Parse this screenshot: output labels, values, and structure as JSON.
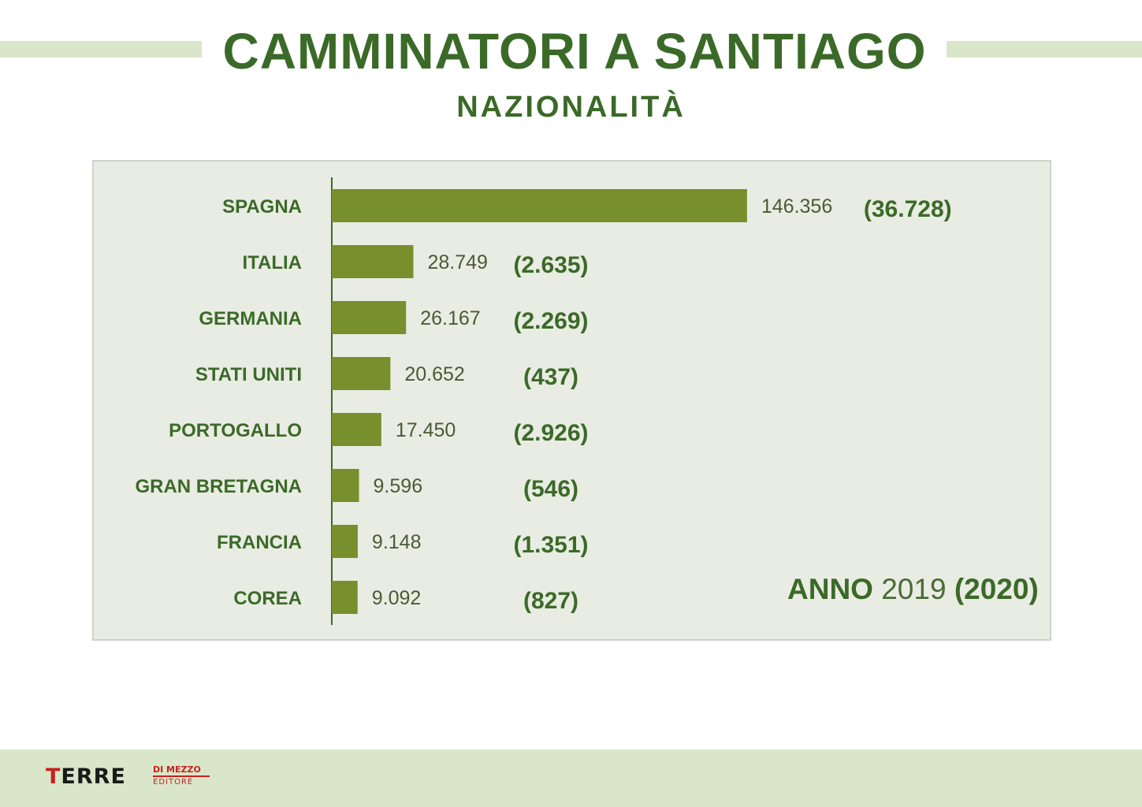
{
  "header": {
    "title": "CAMMINATORI A SANTIAGO",
    "subtitle": "NAZIONALITÀ"
  },
  "year_note": {
    "word": "ANNO",
    "year": "2019",
    "compare_year": "(2020)"
  },
  "footer": {
    "logo_text_first": "T",
    "logo_text_rest": "ERRE",
    "logo_top": "DI MEZZO",
    "logo_bottom": "EDITORE"
  },
  "colors": {
    "bar": "#788f2d",
    "label": "#3b6a28",
    "value": "#4a5a35",
    "compare": "#3b6a28",
    "axis": "#3b6a28",
    "brand_red": "#c8201e"
  },
  "chart_data": {
    "type": "bar",
    "orientation": "horizontal",
    "categories": [
      "SPAGNA",
      "ITALIA",
      "GERMANIA",
      "STATI UNITI",
      "PORTOGALLO",
      "GRAN BRETAGNA",
      "FRANCIA",
      "COREA"
    ],
    "series": [
      {
        "values": [
          146356,
          28749,
          26167,
          20652,
          17450,
          9596,
          9148,
          9092
        ],
        "labels": [
          "146.356",
          "28.749",
          "26.167",
          "20.652",
          "17.450",
          "9.596",
          "9.148",
          "9.092"
        ]
      },
      {
        "values": [
          36728,
          2635,
          2269,
          437,
          2926,
          546,
          1351,
          827
        ],
        "labels": [
          "(36.728)",
          "(2.635)",
          "(2.269)",
          "(437)",
          "(2.926)",
          "(546)",
          "(1.351)",
          "(827)"
        ]
      }
    ],
    "title": "CAMMINATORI A SANTIAGO",
    "xlim": [
      0,
      150000
    ],
    "grid": false,
    "legend": "none"
  }
}
